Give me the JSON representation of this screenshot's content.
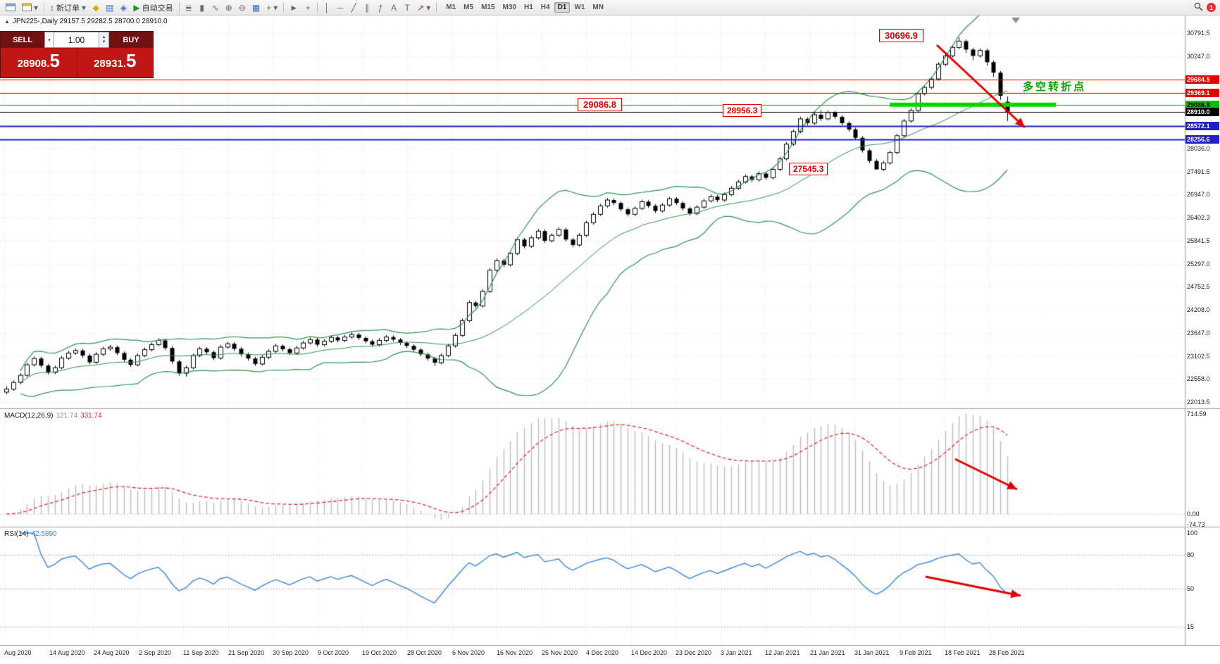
{
  "toolbar": {
    "new_order_label": "新订单",
    "autotrading_label": "自动交易",
    "timeframes": [
      "M1",
      "M5",
      "M15",
      "M30",
      "H1",
      "H4",
      "D1",
      "W1",
      "MN"
    ],
    "active_timeframe": "D1",
    "notification_count": "1",
    "icon_names": [
      "new-chart",
      "chart-profiles",
      "new-order",
      "metaeditor",
      "market-watch",
      "navigator",
      "autotrading-play",
      "bar-chart",
      "candlestick-chart",
      "line-chart",
      "zoom-in",
      "zoom-out",
      "tile-windows",
      "indicators-add",
      "cursor",
      "crosshair",
      "vertical-line",
      "horizontal-line",
      "trendline",
      "equidistant-channel",
      "fibonacci-retracement",
      "text",
      "text-label",
      "arrow-tool",
      "search",
      "notifications",
      "panel-collapse"
    ]
  },
  "glyphs": {
    "collapse": "▲",
    "caret": "▾",
    "play": "▶",
    "up": "▲",
    "down": "▼",
    "new_order": "↕",
    "metaeditor": "◆",
    "market_watch": "▤",
    "navigator": "◈",
    "bar_chart": "≣",
    "candle_chart": "▮",
    "line_chart": "∿",
    "zoom_in": "⊕",
    "zoom_out": "⊖",
    "tile": "▦",
    "indicators": "+",
    "cursor": "►",
    "crosshair": "+",
    "vline": "│",
    "hline": "─",
    "trend": "╱",
    "channel": "∥",
    "fib": "ƒ",
    "text_tool": "A",
    "label_tool": "T",
    "arrow_tool": "↗"
  },
  "chart_header": {
    "title": "JPN225-,Daily 29157.5 29282.5 28700.0 28910.0"
  },
  "trade_panel": {
    "sell_label": "SELL",
    "buy_label": "BUY",
    "volume": "1.00",
    "sell_price_main": "28908.",
    "sell_price_frac": "5",
    "buy_price_main": "28931.",
    "buy_price_frac": "5"
  },
  "chart_data": {
    "type": "candlestick",
    "symbol": "JPN225-",
    "timeframe": "Daily",
    "ohlc_display": {
      "open": "29157.5",
      "high": "29282.5",
      "low": "28700.0",
      "close": "28910.0"
    },
    "price_axis_labels": [
      30791.5,
      30247.0,
      28036.0,
      27491.5,
      26947.0,
      26402.3,
      25841.5,
      25297.0,
      24752.5,
      24208.0,
      23647.0,
      23102.5,
      22558.0,
      22013.5
    ],
    "level_lines": [
      {
        "name": "resistance-line-1",
        "price": 29684.5,
        "color": "#e00000",
        "label_fg": "#ffffff",
        "width": 1
      },
      {
        "name": "resistance-line-2",
        "price": 29369.1,
        "color": "#e00000",
        "label_fg": "#ffffff",
        "width": 1
      },
      {
        "name": "support-line-green",
        "price": 29086.8,
        "color": "#00c000",
        "label_fg": "#000000",
        "width": 1
      },
      {
        "name": "support-line-blue-1",
        "price": 28572.1,
        "color": "#2020c0",
        "label_fg": "#ffffff",
        "width": 2
      },
      {
        "name": "support-line-blue-2",
        "price": 28256.6,
        "color": "#2020c0",
        "label_fg": "#ffffff",
        "width": 2
      }
    ],
    "current_price": {
      "value": 28910.0,
      "label_bg": "#000000",
      "label_fg": "#ffffff"
    },
    "support_zone": {
      "price": 29086.8,
      "color": "#00d800"
    },
    "annotations": [
      {
        "text": "30696.9"
      },
      {
        "text": "29086.8"
      },
      {
        "text": "28956.3"
      },
      {
        "text": "27545.3"
      }
    ],
    "callout_text": "多空转折点",
    "trend_arrows": [
      {
        "panel": "price",
        "direction": "down",
        "color": "#e10000"
      },
      {
        "panel": "macd",
        "direction": "down",
        "color": "#e10000"
      },
      {
        "panel": "rsi",
        "direction": "down",
        "color": "#e10000"
      }
    ],
    "indicators": {
      "bollinger": {
        "period": 20,
        "deviation": 2,
        "color": "#2e9450"
      }
    },
    "x_labels": [
      "Aug 2020",
      "14 Aug 2020",
      "24 Aug 2020",
      "2 Sep 2020",
      "11 Sep 2020",
      "21 Sep 2020",
      "30 Sep 2020",
      "9 Oct 2020",
      "19 Oct 2020",
      "28 Oct 2020",
      "6 Nov 2020",
      "16 Nov 2020",
      "25 Nov 2020",
      "4 Dec 2020",
      "14 Dec 2020",
      "23 Dec 2020",
      "3 Jan 2021",
      "12 Jan 2021",
      "21 Jan 2021",
      "31 Jan 2021",
      "9 Feb 2021",
      "18 Feb 2021",
      "28 Feb 2021"
    ],
    "candles": [
      [
        22250,
        22390,
        22200,
        22320
      ],
      [
        22320,
        22530,
        22280,
        22480
      ],
      [
        22480,
        22700,
        22440,
        22650
      ],
      [
        22650,
        22950,
        22610,
        22900
      ],
      [
        22900,
        23100,
        22860,
        23050
      ],
      [
        23050,
        23090,
        22830,
        22880
      ],
      [
        22880,
        22920,
        22670,
        22720
      ],
      [
        22720,
        22880,
        22680,
        22830
      ],
      [
        22830,
        23110,
        22790,
        23060
      ],
      [
        23060,
        23230,
        23020,
        23180
      ],
      [
        23180,
        23290,
        23140,
        23240
      ],
      [
        23240,
        23280,
        23070,
        23120
      ],
      [
        23120,
        23160,
        22910,
        22960
      ],
      [
        22960,
        23200,
        22920,
        23150
      ],
      [
        23150,
        23330,
        23110,
        23280
      ],
      [
        23280,
        23370,
        23240,
        23320
      ],
      [
        23320,
        23360,
        23130,
        23180
      ],
      [
        23180,
        23220,
        22970,
        23020
      ],
      [
        23020,
        23060,
        22850,
        22900
      ],
      [
        22900,
        23170,
        22860,
        23120
      ],
      [
        23120,
        23310,
        23080,
        23260
      ],
      [
        23260,
        23430,
        23220,
        23380
      ],
      [
        23380,
        23530,
        23340,
        23480
      ],
      [
        23480,
        23520,
        23250,
        23300
      ],
      [
        23300,
        23340,
        22930,
        22980
      ],
      [
        22980,
        23020,
        22640,
        22700
      ],
      [
        22700,
        22880,
        22620,
        22830
      ],
      [
        22830,
        23170,
        22790,
        23120
      ],
      [
        23120,
        23330,
        23080,
        23280
      ],
      [
        23280,
        23320,
        23150,
        23200
      ],
      [
        23200,
        23240,
        23010,
        23060
      ],
      [
        23060,
        23370,
        23020,
        23320
      ],
      [
        23320,
        23450,
        23280,
        23400
      ],
      [
        23400,
        23440,
        23230,
        23280
      ],
      [
        23280,
        23320,
        23100,
        23150
      ],
      [
        23150,
        23190,
        23000,
        23050
      ],
      [
        23050,
        23090,
        22870,
        22920
      ],
      [
        22920,
        23130,
        22880,
        23080
      ],
      [
        23080,
        23270,
        23040,
        23220
      ],
      [
        23220,
        23400,
        23180,
        23350
      ],
      [
        23350,
        23390,
        23220,
        23270
      ],
      [
        23270,
        23310,
        23130,
        23180
      ],
      [
        23180,
        23350,
        23140,
        23300
      ],
      [
        23300,
        23470,
        23260,
        23420
      ],
      [
        23420,
        23550,
        23380,
        23500
      ],
      [
        23500,
        23540,
        23330,
        23380
      ],
      [
        23380,
        23510,
        23340,
        23460
      ],
      [
        23460,
        23600,
        23420,
        23550
      ],
      [
        23550,
        23590,
        23430,
        23480
      ],
      [
        23480,
        23610,
        23440,
        23560
      ],
      [
        23560,
        23670,
        23520,
        23620
      ],
      [
        23620,
        23660,
        23490,
        23540
      ],
      [
        23540,
        23580,
        23410,
        23460
      ],
      [
        23460,
        23500,
        23330,
        23380
      ],
      [
        23380,
        23530,
        23340,
        23480
      ],
      [
        23480,
        23610,
        23440,
        23560
      ],
      [
        23560,
        23600,
        23450,
        23500
      ],
      [
        23500,
        23540,
        23370,
        23420
      ],
      [
        23420,
        23460,
        23300,
        23350
      ],
      [
        23350,
        23390,
        23210,
        23260
      ],
      [
        23260,
        23300,
        23100,
        23150
      ],
      [
        23150,
        23190,
        23000,
        23050
      ],
      [
        23050,
        23090,
        22870,
        22950
      ],
      [
        22950,
        23170,
        22910,
        23120
      ],
      [
        23120,
        23400,
        23080,
        23350
      ],
      [
        23350,
        23650,
        23310,
        23600
      ],
      [
        23600,
        24000,
        23560,
        23950
      ],
      [
        23950,
        24430,
        23910,
        24380
      ],
      [
        24380,
        24420,
        24250,
        24300
      ],
      [
        24300,
        24700,
        24260,
        24650
      ],
      [
        24650,
        25200,
        24610,
        25150
      ],
      [
        25150,
        25430,
        25110,
        25380
      ],
      [
        25380,
        25420,
        25230,
        25280
      ],
      [
        25280,
        25600,
        25240,
        25550
      ],
      [
        25550,
        25930,
        25510,
        25880
      ],
      [
        25880,
        25920,
        25670,
        25720
      ],
      [
        25720,
        25970,
        25680,
        25920
      ],
      [
        25920,
        26130,
        25880,
        26080
      ],
      [
        26080,
        26120,
        25800,
        25850
      ],
      [
        25850,
        26030,
        25810,
        25980
      ],
      [
        25980,
        26170,
        25940,
        26120
      ],
      [
        26120,
        26160,
        25830,
        25880
      ],
      [
        25880,
        25920,
        25700,
        25750
      ],
      [
        25750,
        26030,
        25710,
        25980
      ],
      [
        25980,
        26330,
        25940,
        26280
      ],
      [
        26280,
        26530,
        26240,
        26480
      ],
      [
        26480,
        26730,
        26440,
        26680
      ],
      [
        26680,
        26870,
        26640,
        26820
      ],
      [
        26820,
        26860,
        26700,
        26750
      ],
      [
        26750,
        26790,
        26550,
        26600
      ],
      [
        26600,
        26640,
        26430,
        26480
      ],
      [
        26480,
        26670,
        26440,
        26620
      ],
      [
        26620,
        26830,
        26580,
        26780
      ],
      [
        26780,
        26820,
        26630,
        26680
      ],
      [
        26680,
        26720,
        26510,
        26560
      ],
      [
        26560,
        26750,
        26520,
        26700
      ],
      [
        26700,
        26900,
        26660,
        26850
      ],
      [
        26850,
        26890,
        26700,
        26750
      ],
      [
        26750,
        26790,
        26570,
        26620
      ],
      [
        26620,
        26660,
        26450,
        26500
      ],
      [
        26500,
        26700,
        26460,
        26650
      ],
      [
        26650,
        26850,
        26610,
        26800
      ],
      [
        26800,
        26950,
        26760,
        26900
      ],
      [
        26900,
        26940,
        26770,
        26820
      ],
      [
        26820,
        27000,
        26780,
        26950
      ],
      [
        26950,
        27150,
        26910,
        27100
      ],
      [
        27100,
        27300,
        27060,
        27250
      ],
      [
        27250,
        27430,
        27210,
        27380
      ],
      [
        27380,
        27420,
        27250,
        27300
      ],
      [
        27300,
        27500,
        27260,
        27450
      ],
      [
        27450,
        27490,
        27300,
        27350
      ],
      [
        27350,
        27600,
        27310,
        27550
      ],
      [
        27550,
        27850,
        27510,
        27800
      ],
      [
        27800,
        28200,
        27760,
        28150
      ],
      [
        28150,
        28500,
        28110,
        28450
      ],
      [
        28450,
        28800,
        28410,
        28750
      ],
      [
        28750,
        28790,
        28600,
        28650
      ],
      [
        28650,
        28900,
        28610,
        28850
      ],
      [
        28850,
        28956.3,
        28700,
        28750
      ],
      [
        28750,
        28950,
        28710,
        28900
      ],
      [
        28900,
        28940,
        28750,
        28800
      ],
      [
        28800,
        28840,
        28600,
        28650
      ],
      [
        28650,
        28690,
        28450,
        28500
      ],
      [
        28500,
        28540,
        28250,
        28300
      ],
      [
        28300,
        28340,
        27950,
        28000
      ],
      [
        28000,
        28040,
        27700,
        27750
      ],
      [
        27750,
        27790,
        27545.3,
        27550
      ],
      [
        27550,
        27750,
        27510,
        27700
      ],
      [
        27700,
        28000,
        27660,
        27950
      ],
      [
        27950,
        28400,
        27910,
        28350
      ],
      [
        28350,
        28750,
        28310,
        28700
      ],
      [
        28700,
        29000,
        28660,
        28950
      ],
      [
        28950,
        29400,
        28910,
        29350
      ],
      [
        29350,
        29550,
        29310,
        29500
      ],
      [
        29500,
        29750,
        29460,
        29700
      ],
      [
        29700,
        30100,
        29660,
        30050
      ],
      [
        30050,
        30300,
        30010,
        30250
      ],
      [
        30250,
        30500,
        30210,
        30450
      ],
      [
        30450,
        30696.9,
        30410,
        30600
      ],
      [
        30600,
        30640,
        30320,
        30400
      ],
      [
        30400,
        30440,
        30150,
        30250
      ],
      [
        30250,
        30430,
        30210,
        30380
      ],
      [
        30380,
        30420,
        30020,
        30100
      ],
      [
        30100,
        30140,
        29750,
        29850
      ],
      [
        29850,
        29890,
        29200,
        29300
      ],
      [
        29157.5,
        29282.5,
        28700,
        28910
      ]
    ]
  },
  "macd": {
    "label": "MACD(12,26,9)",
    "value_main": "121.74",
    "value_signal": "331.74",
    "axis_values": [
      714.59,
      0,
      -74.73
    ],
    "params": {
      "fast": 12,
      "slow": 26,
      "signal": 9
    },
    "histogram_color": "#bdbdbd",
    "signal_color": "#e03030"
  },
  "rsi": {
    "label": "RSI(14)",
    "value": "42.5890",
    "period": 14,
    "axis_values": [
      100,
      80,
      50,
      15
    ],
    "levels": [
      80,
      50,
      15
    ],
    "line_color": "#3e86d8"
  }
}
